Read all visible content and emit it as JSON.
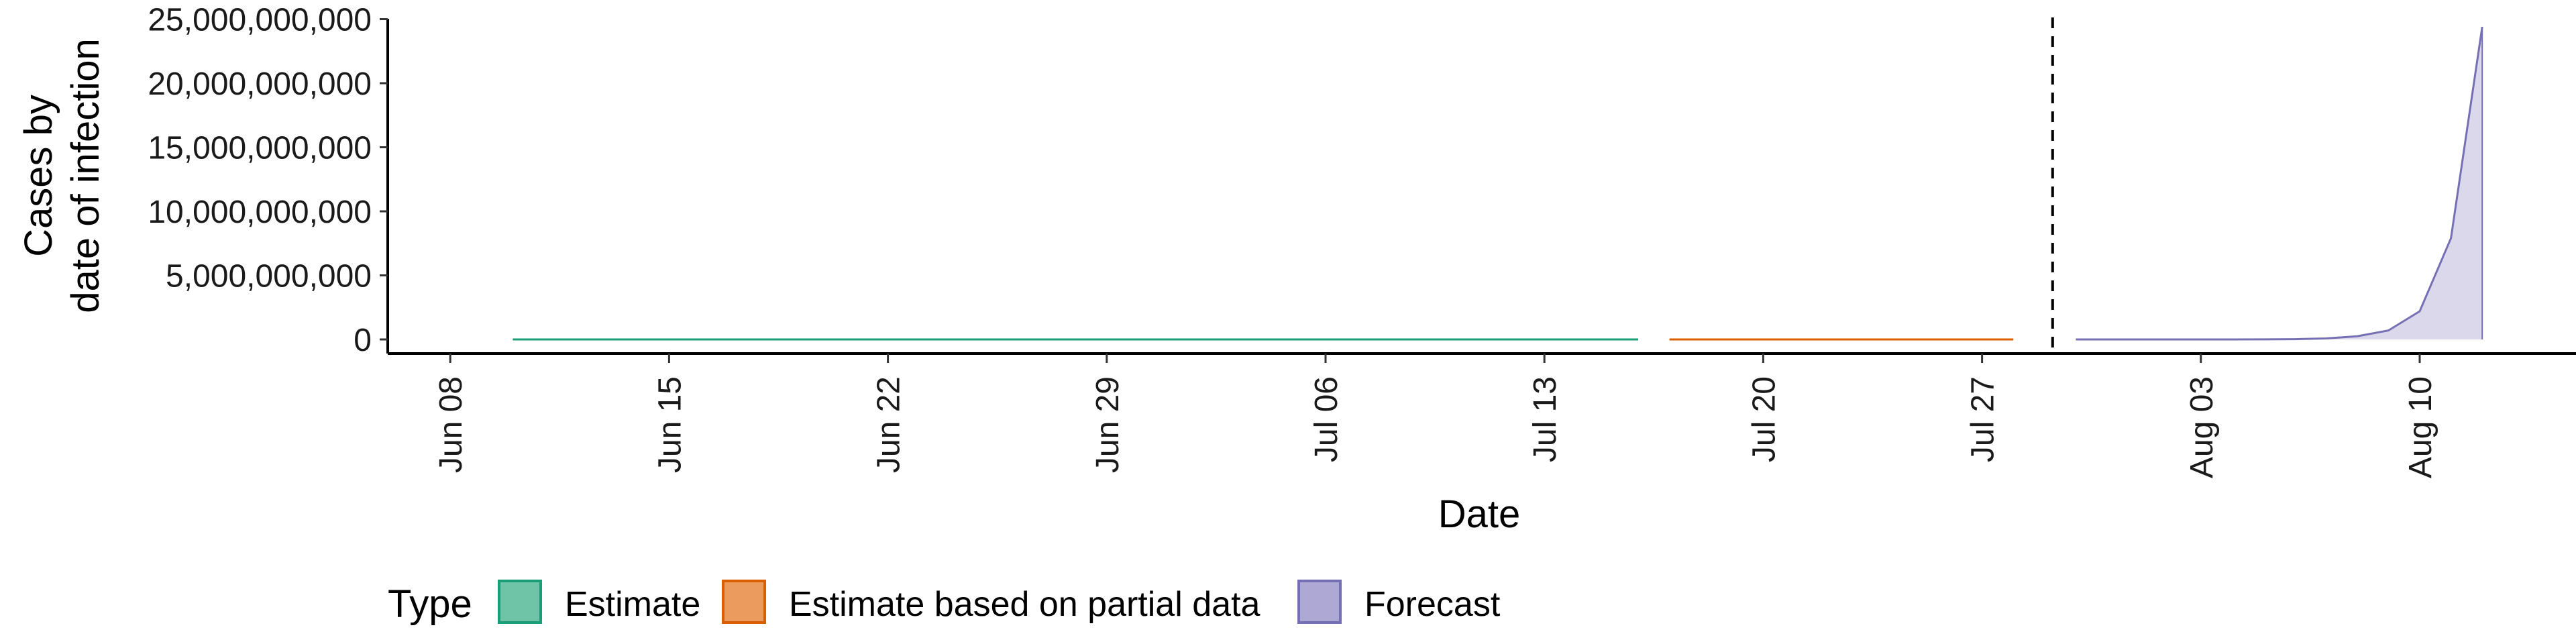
{
  "chart_data": {
    "type": "area",
    "title": "",
    "xlabel": "Date",
    "ylabel": [
      "Cases by",
      "date of infection"
    ],
    "x_ticks": [
      "Jun 08",
      "Jun 15",
      "Jun 22",
      "Jun 29",
      "Jul 06",
      "Jul 13",
      "Jul 20",
      "Jul 27",
      "Aug 03",
      "Aug 10"
    ],
    "y_ticks": [
      "0",
      "5,000,000,000",
      "10,000,000,000",
      "15,000,000,000",
      "20,000,000,000",
      "25,000,000,000"
    ],
    "ylim": [
      0,
      26000000000
    ],
    "xlim": [
      "2020-06-06",
      "2020-08-15"
    ],
    "forecast_start": "2020-07-29",
    "grid": false,
    "legend": {
      "title": "Type",
      "position": "bottom",
      "entries": [
        {
          "label": "Estimate",
          "fill": "#6fc4a8",
          "stroke": "#1b9e77"
        },
        {
          "label": "Estimate based on partial data",
          "fill": "#eb9b5e",
          "stroke": "#d95f02"
        },
        {
          "label": "Forecast",
          "fill": "#ada8d4",
          "stroke": "#7570b3"
        }
      ]
    },
    "series": [
      {
        "name": "Estimate",
        "color": "#1b9e77",
        "x": [
          "2020-06-10",
          "2020-07-16"
        ],
        "values": [
          0,
          0
        ]
      },
      {
        "name": "Estimate based on partial data",
        "color": "#d95f02",
        "x": [
          "2020-07-17",
          "2020-07-28"
        ],
        "values": [
          0,
          0
        ]
      },
      {
        "name": "Forecast",
        "color": "#7570b3",
        "fill": "#dad8ea",
        "x": [
          "2020-07-30",
          "2020-07-31",
          "2020-08-01",
          "2020-08-02",
          "2020-08-03",
          "2020-08-04",
          "2020-08-05",
          "2020-08-06",
          "2020-08-07",
          "2020-08-08",
          "2020-08-09",
          "2020-08-10",
          "2020-08-11",
          "2020-08-12"
        ],
        "values": [
          0,
          0,
          0,
          0,
          0,
          1000000,
          5000000,
          20000000,
          80000000,
          250000000,
          700000000,
          2200000000,
          7900000000,
          24400000000
        ]
      }
    ]
  }
}
